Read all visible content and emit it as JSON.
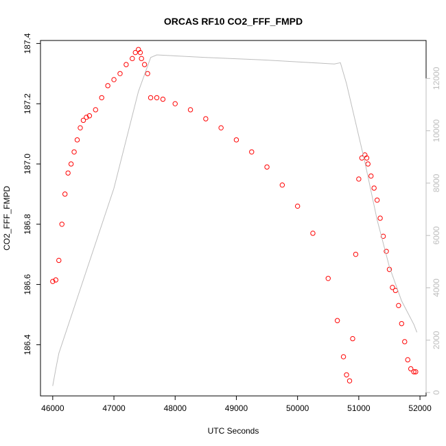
{
  "chart_data": {
    "type": "scatter",
    "title": "ORCAS RF10 CO2_FFF_FMPD",
    "xlabel": "UTC Seconds",
    "ylabel": "CO2_FFF_FMPD",
    "xlim": [
      45800,
      52100
    ],
    "ylim": [
      186.23,
      187.41
    ],
    "y2lim": [
      -130,
      13450
    ],
    "x_ticks": [
      46000,
      47000,
      48000,
      49000,
      50000,
      51000,
      52000
    ],
    "y_ticks": [
      186.4,
      186.6,
      186.8,
      187.0,
      187.2,
      187.4
    ],
    "y2_ticks": [
      0,
      2000,
      4000,
      6000,
      8000,
      10000,
      12000
    ],
    "grid": false,
    "series": [
      {
        "color": "#ff0000",
        "marker": "open-circle",
        "axis": "left",
        "x": [
          46000,
          46050,
          46100,
          46150,
          46200,
          46250,
          46300,
          46350,
          46400,
          46450,
          46500,
          46550,
          46600,
          46700,
          46800,
          46900,
          47000,
          47100,
          47200,
          47300,
          47350,
          47400,
          47430,
          47450,
          47500,
          47550,
          47600,
          47700,
          47800,
          48000,
          48250,
          48500,
          48750,
          49000,
          49250,
          49500,
          49750,
          50000,
          50250,
          50500,
          50650,
          50750,
          50800,
          50850,
          50900,
          50950,
          51000,
          51050,
          51100,
          51130,
          51150,
          51200,
          51250,
          51300,
          51350,
          51400,
          51450,
          51500,
          51550,
          51600,
          51650,
          51700,
          51750,
          51800,
          51850,
          51900,
          51930
        ],
        "y": [
          186.61,
          186.615,
          186.68,
          186.8,
          186.9,
          186.97,
          187.0,
          187.04,
          187.08,
          187.12,
          187.145,
          187.155,
          187.16,
          187.18,
          187.22,
          187.26,
          187.28,
          187.3,
          187.33,
          187.35,
          187.37,
          187.38,
          187.37,
          187.35,
          187.33,
          187.3,
          187.22,
          187.22,
          187.215,
          187.2,
          187.18,
          187.15,
          187.12,
          187.08,
          187.04,
          186.99,
          186.93,
          186.86,
          186.77,
          186.62,
          186.48,
          186.36,
          186.3,
          186.28,
          186.42,
          186.7,
          186.95,
          187.02,
          187.03,
          187.02,
          187.0,
          186.96,
          186.92,
          186.88,
          186.82,
          186.76,
          186.71,
          186.65,
          186.59,
          186.58,
          186.53,
          186.47,
          186.41,
          186.35,
          186.32,
          186.31,
          186.31
        ]
      },
      {
        "color": "#bdbdbd",
        "line": true,
        "axis": "right",
        "x": [
          46000,
          46050,
          46100,
          47000,
          47400,
          47600,
          47700,
          48500,
          49500,
          50600,
          50700,
          50800,
          51100,
          51300,
          51500,
          51700,
          51900,
          51950
        ],
        "y": [
          250,
          900,
          1500,
          7800,
          11500,
          12800,
          12900,
          12800,
          12700,
          12550,
          12600,
          11800,
          8800,
          6600,
          4800,
          3500,
          2600,
          2300
        ]
      }
    ]
  }
}
